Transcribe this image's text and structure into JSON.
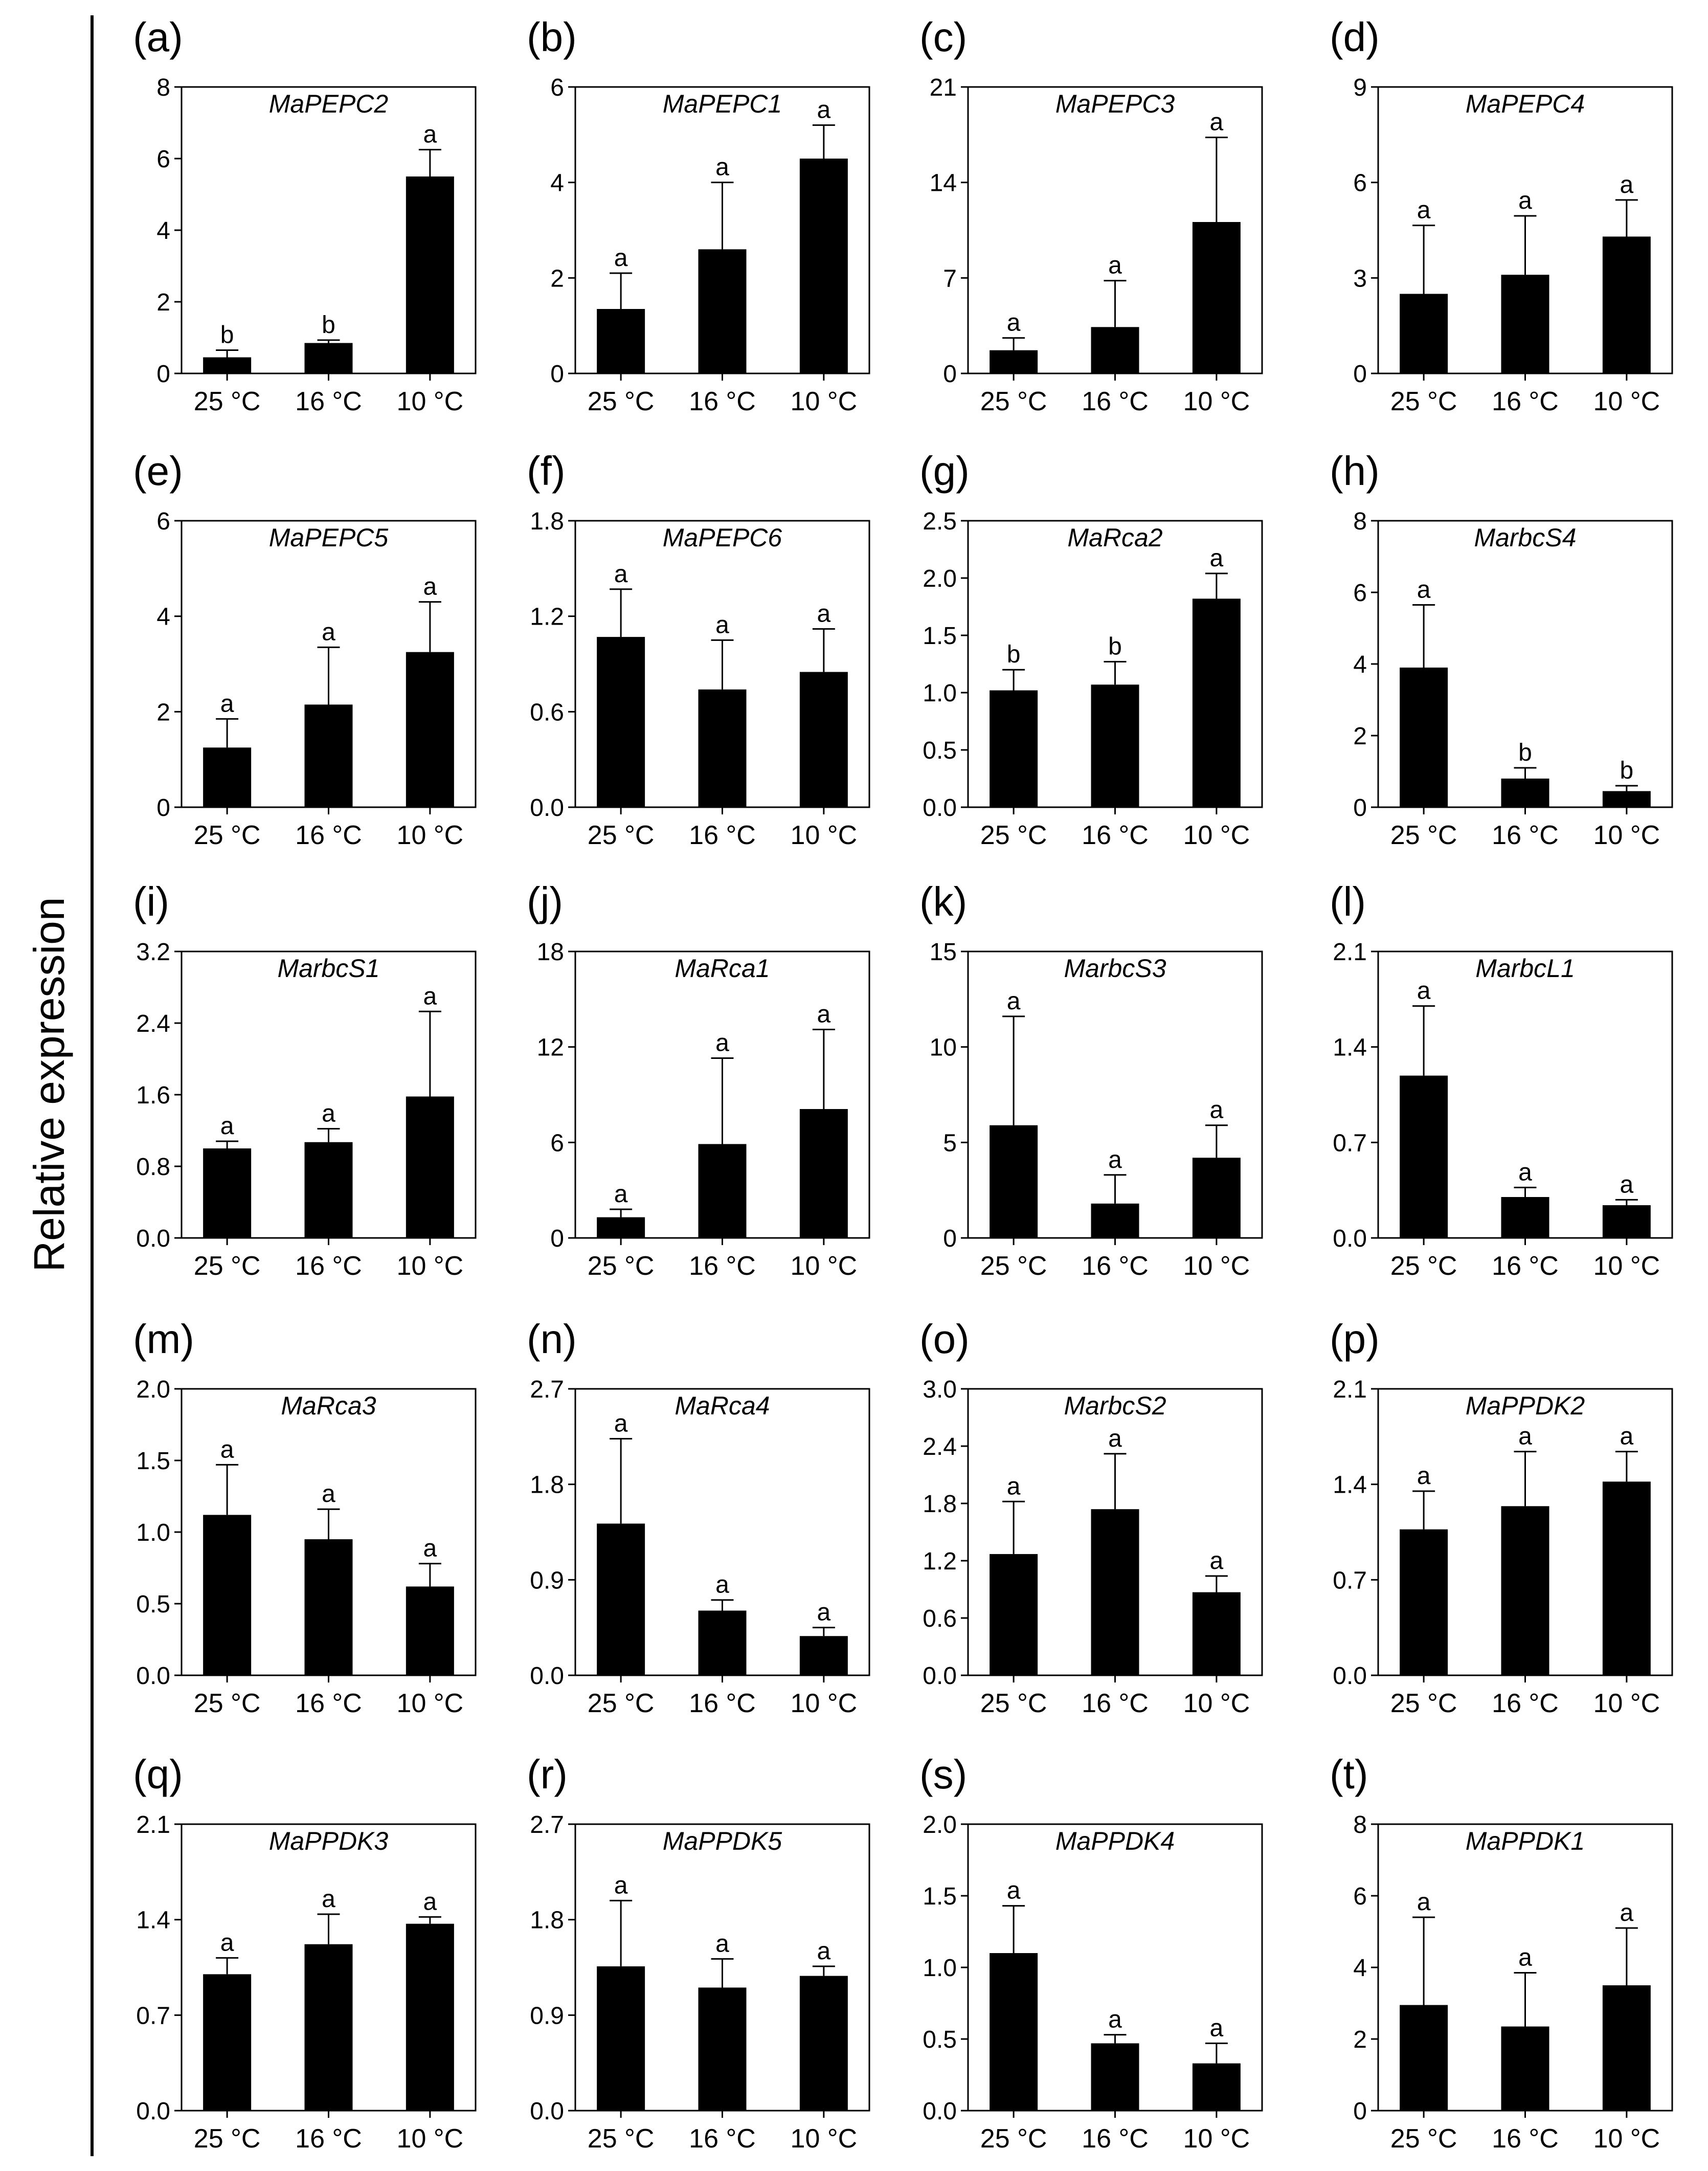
{
  "figure": {
    "y_axis_label": "Relative expression"
  },
  "chart_data": [
    {
      "panel": "(a)",
      "type": "bar",
      "title": "MaPEPC2",
      "categories": [
        "25 °C",
        "16 °C",
        "10 °C"
      ],
      "ylim": [
        0,
        8
      ],
      "yticks": [
        0,
        2,
        4,
        6,
        8
      ],
      "ytick_labels": [
        "0",
        "2",
        "4",
        "6",
        "8"
      ],
      "values": [
        0.45,
        0.85,
        5.5
      ],
      "errors": [
        0.2,
        0.08,
        0.75
      ],
      "significance": [
        "b",
        "b",
        "a"
      ]
    },
    {
      "panel": "(b)",
      "type": "bar",
      "title": "MaPEPC1",
      "categories": [
        "25 °C",
        "16 °C",
        "10 °C"
      ],
      "ylim": [
        0,
        6
      ],
      "yticks": [
        0,
        2,
        4,
        6
      ],
      "ytick_labels": [
        "0",
        "2",
        "4",
        "6"
      ],
      "values": [
        1.35,
        2.6,
        4.5
      ],
      "errors": [
        0.75,
        1.4,
        0.7
      ],
      "significance": [
        "a",
        "a",
        "a"
      ]
    },
    {
      "panel": "(c)",
      "type": "bar",
      "title": "MaPEPC3",
      "categories": [
        "25 °C",
        "16 °C",
        "10 °C"
      ],
      "ylim": [
        0,
        21
      ],
      "yticks": [
        0,
        7,
        14,
        21
      ],
      "ytick_labels": [
        "0",
        "7",
        "14",
        "21"
      ],
      "values": [
        1.7,
        3.4,
        11.1
      ],
      "errors": [
        0.9,
        3.4,
        6.2
      ],
      "significance": [
        "a",
        "a",
        "a"
      ]
    },
    {
      "panel": "(d)",
      "type": "bar",
      "title": "MaPEPC4",
      "categories": [
        "25 °C",
        "16 °C",
        "10 °C"
      ],
      "ylim": [
        0,
        9
      ],
      "yticks": [
        0,
        3,
        6,
        9
      ],
      "ytick_labels": [
        "0",
        "3",
        "6",
        "9"
      ],
      "values": [
        2.5,
        3.1,
        4.3
      ],
      "errors": [
        2.15,
        1.85,
        1.15
      ],
      "significance": [
        "a",
        "a",
        "a"
      ]
    },
    {
      "panel": "(e)",
      "type": "bar",
      "title": "MaPEPC5",
      "categories": [
        "25 °C",
        "16 °C",
        "10 °C"
      ],
      "ylim": [
        0,
        6
      ],
      "yticks": [
        0,
        2,
        4,
        6
      ],
      "ytick_labels": [
        "0",
        "2",
        "4",
        "6"
      ],
      "values": [
        1.25,
        2.15,
        3.25
      ],
      "errors": [
        0.6,
        1.2,
        1.05
      ],
      "significance": [
        "a",
        "a",
        "a"
      ]
    },
    {
      "panel": "(f)",
      "type": "bar",
      "title": "MaPEPC6",
      "categories": [
        "25 °C",
        "16 °C",
        "10 °C"
      ],
      "ylim": [
        0,
        1.8
      ],
      "yticks": [
        0,
        0.6,
        1.2,
        1.8
      ],
      "ytick_labels": [
        "0.0",
        "0.6",
        "1.2",
        "1.8"
      ],
      "values": [
        1.07,
        0.74,
        0.85
      ],
      "errors": [
        0.3,
        0.31,
        0.27
      ],
      "significance": [
        "a",
        "a",
        "a"
      ]
    },
    {
      "panel": "(g)",
      "type": "bar",
      "title": "MaRca2",
      "categories": [
        "25 °C",
        "16 °C",
        "10 °C"
      ],
      "ylim": [
        0,
        2.5
      ],
      "yticks": [
        0,
        0.5,
        1.0,
        1.5,
        2.0,
        2.5
      ],
      "ytick_labels": [
        "0.0",
        "0.5",
        "1.0",
        "1.5",
        "2.0",
        "2.5"
      ],
      "values": [
        1.02,
        1.07,
        1.82
      ],
      "errors": [
        0.18,
        0.2,
        0.22
      ],
      "significance": [
        "b",
        "b",
        "a"
      ]
    },
    {
      "panel": "(h)",
      "type": "bar",
      "title": "MarbcS4",
      "categories": [
        "25 °C",
        "16 °C",
        "10 °C"
      ],
      "ylim": [
        0,
        8
      ],
      "yticks": [
        0,
        2,
        4,
        6,
        8
      ],
      "ytick_labels": [
        "0",
        "2",
        "4",
        "6",
        "8"
      ],
      "values": [
        3.9,
        0.8,
        0.45
      ],
      "errors": [
        1.75,
        0.3,
        0.15
      ],
      "significance": [
        "a",
        "b",
        "b"
      ]
    },
    {
      "panel": "(i)",
      "type": "bar",
      "title": "MarbcS1",
      "categories": [
        "25 °C",
        "16 °C",
        "10 °C"
      ],
      "ylim": [
        0,
        3.2
      ],
      "yticks": [
        0,
        0.8,
        1.6,
        2.4,
        3.2
      ],
      "ytick_labels": [
        "0.0",
        "0.8",
        "1.6",
        "2.4",
        "3.2"
      ],
      "values": [
        1.0,
        1.07,
        1.58
      ],
      "errors": [
        0.08,
        0.15,
        0.95
      ],
      "significance": [
        "a",
        "a",
        "a"
      ]
    },
    {
      "panel": "(j)",
      "type": "bar",
      "title": "MaRca1",
      "categories": [
        "25 °C",
        "16 °C",
        "10 °C"
      ],
      "ylim": [
        0,
        18
      ],
      "yticks": [
        0,
        6,
        12,
        18
      ],
      "ytick_labels": [
        "0",
        "6",
        "12",
        "18"
      ],
      "values": [
        1.3,
        5.9,
        8.1
      ],
      "errors": [
        0.5,
        5.4,
        5.0
      ],
      "significance": [
        "a",
        "a",
        "a"
      ]
    },
    {
      "panel": "(k)",
      "type": "bar",
      "title": "MarbcS3",
      "categories": [
        "25 °C",
        "16 °C",
        "10 °C"
      ],
      "ylim": [
        0,
        15
      ],
      "yticks": [
        0,
        5,
        10,
        15
      ],
      "ytick_labels": [
        "0",
        "5",
        "10",
        "15"
      ],
      "values": [
        5.9,
        1.8,
        4.2
      ],
      "errors": [
        5.7,
        1.5,
        1.7
      ],
      "significance": [
        "a",
        "a",
        "a"
      ]
    },
    {
      "panel": "(l)",
      "type": "bar",
      "title": "MarbcL1",
      "categories": [
        "25 °C",
        "16 °C",
        "10 °C"
      ],
      "ylim": [
        0,
        2.1
      ],
      "yticks": [
        0,
        0.7,
        1.4,
        2.1
      ],
      "ytick_labels": [
        "0.0",
        "0.7",
        "1.4",
        "2.1"
      ],
      "values": [
        1.19,
        0.3,
        0.24
      ],
      "errors": [
        0.51,
        0.07,
        0.04
      ],
      "significance": [
        "a",
        "a",
        "a"
      ]
    },
    {
      "panel": "(m)",
      "type": "bar",
      "title": "MaRca3",
      "categories": [
        "25 °C",
        "16 °C",
        "10 °C"
      ],
      "ylim": [
        0,
        2.0
      ],
      "yticks": [
        0,
        0.5,
        1.0,
        1.5,
        2.0
      ],
      "ytick_labels": [
        "0.0",
        "0.5",
        "1.0",
        "1.5",
        "2.0"
      ],
      "values": [
        1.12,
        0.95,
        0.62
      ],
      "errors": [
        0.35,
        0.21,
        0.16
      ],
      "significance": [
        "a",
        "a",
        "a"
      ]
    },
    {
      "panel": "(n)",
      "type": "bar",
      "title": "MaRca4",
      "categories": [
        "25 °C",
        "16 °C",
        "10 °C"
      ],
      "ylim": [
        0,
        2.7
      ],
      "yticks": [
        0,
        0.9,
        1.8,
        2.7
      ],
      "ytick_labels": [
        "0.0",
        "0.9",
        "1.8",
        "2.7"
      ],
      "values": [
        1.43,
        0.61,
        0.37
      ],
      "errors": [
        0.8,
        0.1,
        0.08
      ],
      "significance": [
        "a",
        "a",
        "a"
      ]
    },
    {
      "panel": "(o)",
      "type": "bar",
      "title": "MarbcS2",
      "categories": [
        "25 °C",
        "16 °C",
        "10 °C"
      ],
      "ylim": [
        0,
        3.0
      ],
      "yticks": [
        0,
        0.6,
        1.2,
        1.8,
        2.4,
        3.0
      ],
      "ytick_labels": [
        "0.0",
        "0.6",
        "1.2",
        "1.8",
        "2.4",
        "3.0"
      ],
      "values": [
        1.27,
        1.74,
        0.87
      ],
      "errors": [
        0.55,
        0.58,
        0.17
      ],
      "significance": [
        "a",
        "a",
        "a"
      ]
    },
    {
      "panel": "(p)",
      "type": "bar",
      "title": "MaPPDK2",
      "categories": [
        "25 °C",
        "16 °C",
        "10 °C"
      ],
      "ylim": [
        0,
        2.1
      ],
      "yticks": [
        0,
        0.7,
        1.4,
        2.1
      ],
      "ytick_labels": [
        "0.0",
        "0.7",
        "1.4",
        "2.1"
      ],
      "values": [
        1.07,
        1.24,
        1.42
      ],
      "errors": [
        0.28,
        0.4,
        0.22
      ],
      "significance": [
        "a",
        "a",
        "a"
      ]
    },
    {
      "panel": "(q)",
      "type": "bar",
      "title": "MaPPDK3",
      "categories": [
        "25 °C",
        "16 °C",
        "10 °C"
      ],
      "ylim": [
        0,
        2.1
      ],
      "yticks": [
        0,
        0.7,
        1.4,
        2.1
      ],
      "ytick_labels": [
        "0.0",
        "0.7",
        "1.4",
        "2.1"
      ],
      "values": [
        1.0,
        1.22,
        1.37
      ],
      "errors": [
        0.12,
        0.22,
        0.05
      ],
      "significance": [
        "a",
        "a",
        "a"
      ]
    },
    {
      "panel": "(r)",
      "type": "bar",
      "title": "MaPPDK5",
      "categories": [
        "25 °C",
        "16 °C",
        "10 °C"
      ],
      "ylim": [
        0,
        2.7
      ],
      "yticks": [
        0,
        0.9,
        1.8,
        2.7
      ],
      "ytick_labels": [
        "0.0",
        "0.9",
        "1.8",
        "2.7"
      ],
      "values": [
        1.36,
        1.16,
        1.27
      ],
      "errors": [
        0.62,
        0.27,
        0.09
      ],
      "significance": [
        "a",
        "a",
        "a"
      ]
    },
    {
      "panel": "(s)",
      "type": "bar",
      "title": "MaPPDK4",
      "categories": [
        "25 °C",
        "16 °C",
        "10 °C"
      ],
      "ylim": [
        0,
        2.0
      ],
      "yticks": [
        0,
        0.5,
        1.0,
        1.5,
        2.0
      ],
      "ytick_labels": [
        "0.0",
        "0.5",
        "1.0",
        "1.5",
        "2.0"
      ],
      "values": [
        1.1,
        0.47,
        0.33
      ],
      "errors": [
        0.33,
        0.06,
        0.14
      ],
      "significance": [
        "a",
        "a",
        "a"
      ]
    },
    {
      "panel": "(t)",
      "type": "bar",
      "title": "MaPPDK1",
      "categories": [
        "25 °C",
        "16 °C",
        "10 °C"
      ],
      "ylim": [
        0,
        8
      ],
      "yticks": [
        0,
        2,
        4,
        6,
        8
      ],
      "ytick_labels": [
        "0",
        "2",
        "4",
        "6",
        "8"
      ],
      "values": [
        2.95,
        2.35,
        3.5
      ],
      "errors": [
        2.45,
        1.5,
        1.6
      ],
      "significance": [
        "a",
        "a",
        "a"
      ]
    }
  ]
}
